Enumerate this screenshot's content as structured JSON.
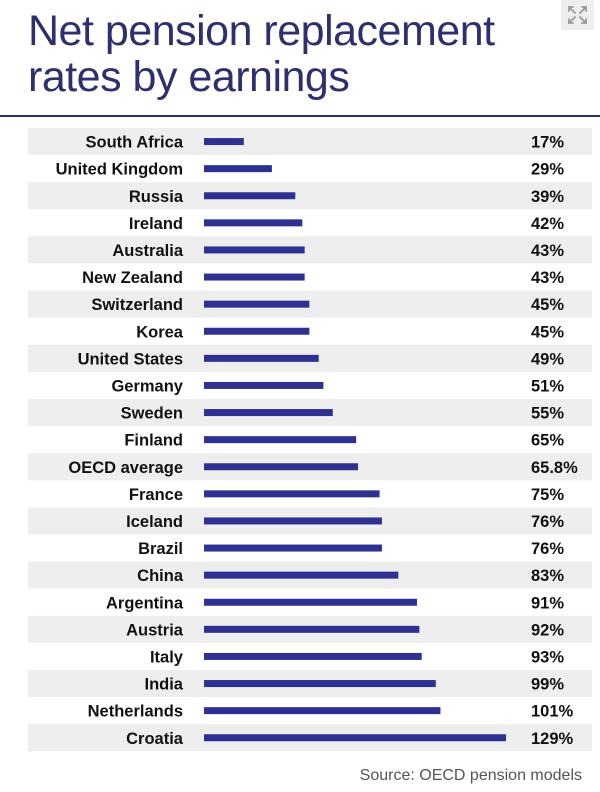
{
  "header": {
    "title": "Net pension replacement rates by earnings",
    "expand_icon": "expand-arrows-icon"
  },
  "colors": {
    "accent": "#2e2f6e",
    "bar": "#2e3192",
    "stripe": "#eeeeee",
    "source_text": "#555555"
  },
  "chart_data": {
    "type": "bar",
    "orientation": "horizontal",
    "title": "Net pension replacement rates by earnings",
    "categories": [
      "South Africa",
      "United Kingdom",
      "Russia",
      "Ireland",
      "Australia",
      "New Zealand",
      "Switzerland",
      "Korea",
      "United States",
      "Germany",
      "Sweden",
      "Finland",
      "OECD average",
      "France",
      "Iceland",
      "Brazil",
      "China",
      "Argentina",
      "Austria",
      "Italy",
      "India",
      "Netherlands",
      "Croatia"
    ],
    "values": [
      17,
      29,
      39,
      42,
      43,
      43,
      45,
      45,
      49,
      51,
      55,
      65,
      65.8,
      75,
      76,
      76,
      83,
      91,
      92,
      93,
      99,
      101,
      129
    ],
    "value_labels": [
      "17%",
      "29%",
      "39%",
      "42%",
      "43%",
      "43%",
      "45%",
      "45%",
      "49%",
      "51%",
      "55%",
      "65%",
      "65.8%",
      "75%",
      "76%",
      "76%",
      "83%",
      "91%",
      "92%",
      "93%",
      "99%",
      "101%",
      "129%"
    ],
    "unit": "%",
    "xlim": [
      0,
      129
    ],
    "grid": false,
    "legend": "none",
    "row_shading": "alternating"
  },
  "footer": {
    "source": "Source: OECD pension models"
  }
}
